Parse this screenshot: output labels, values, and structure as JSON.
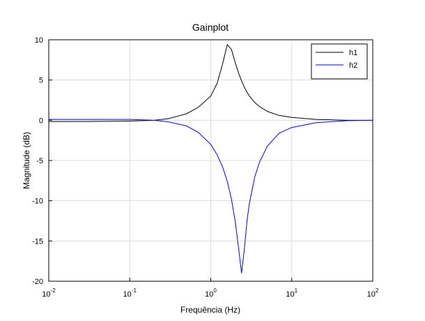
{
  "chart_data": {
    "type": "line",
    "title": "Gainplot",
    "x_label": "Frequência (Hz)",
    "y_label": "Magnitude (dB)",
    "log_x": true,
    "grid": true,
    "legend": "upper right",
    "x": [
      0.01,
      0.03,
      0.1,
      0.2,
      0.3,
      0.5,
      0.7,
      1,
      1.2,
      1.4,
      1.6,
      1.8,
      2,
      2.2,
      2.4,
      2.6,
      2.8,
      3,
      3.5,
      4,
      5,
      7,
      10,
      20,
      50,
      100
    ],
    "series": [
      {
        "name": "h1",
        "color": "#000000",
        "values": [
          -0.17,
          -0.16,
          -0.1,
          0.0,
          0.2,
          0.8,
          1.6,
          3.0,
          4.6,
          7.0,
          9.4,
          8.8,
          7.2,
          5.9,
          4.9,
          4.1,
          3.5,
          3.0,
          2.2,
          1.7,
          1.1,
          0.6,
          0.35,
          0.1,
          0.0,
          0.0
        ]
      },
      {
        "name": "h2",
        "color": "#0000ff",
        "values": [
          0.1,
          0.1,
          0.1,
          0.0,
          -0.2,
          -0.7,
          -1.5,
          -3.0,
          -4.3,
          -5.8,
          -7.6,
          -9.8,
          -12.5,
          -15.8,
          -19.0,
          -16.0,
          -12.5,
          -10.3,
          -7.0,
          -5.2,
          -3.2,
          -1.6,
          -0.9,
          -0.3,
          -0.05,
          0.0
        ]
      }
    ],
    "xlim": [
      0.01,
      100
    ],
    "xticks": [
      {
        "value": 0.01,
        "label": "10",
        "exponent": "-2"
      },
      {
        "value": 0.1,
        "label": "10",
        "exponent": "-1"
      },
      {
        "value": 1,
        "label": "10",
        "exponent": "0"
      },
      {
        "value": 10,
        "label": "10",
        "exponent": "1"
      },
      {
        "value": 100,
        "label": "10",
        "exponent": "2"
      }
    ],
    "ylim": [
      -20,
      10
    ],
    "yticks": [
      -20,
      -15,
      -10,
      -5,
      0,
      5,
      10
    ]
  }
}
